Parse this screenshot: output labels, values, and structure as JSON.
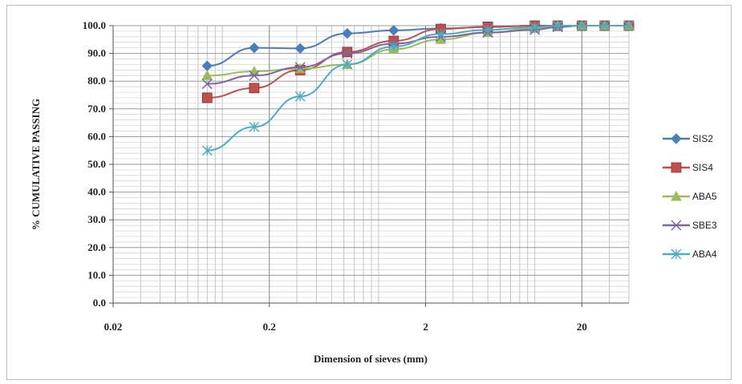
{
  "chart_data": {
    "type": "line",
    "title": "",
    "xlabel": "Dimension of sieves (mm)",
    "ylabel": "% CUMULATIVE PASSING",
    "x_scale": "log",
    "xlim": [
      0.02,
      40
    ],
    "ylim": [
      0,
      100
    ],
    "x_tick_labels": [
      "0.02",
      "0.2",
      "2",
      "20"
    ],
    "x_tick_values": [
      0.02,
      0.2,
      2,
      20
    ],
    "y_tick_labels": [
      "0.0",
      "10.0",
      "20.0",
      "30.0",
      "40.0",
      "50.0",
      "60.0",
      "70.0",
      "80.0",
      "90.0",
      "100.0"
    ],
    "y_tick_values": [
      0,
      10,
      20,
      30,
      40,
      50,
      60,
      70,
      80,
      90,
      100
    ],
    "grid": true,
    "legend_position": "right",
    "series": [
      {
        "name": "SIS2",
        "color": "#4a7ebb",
        "marker": "diamond",
        "x": [
          0.08,
          0.16,
          0.315,
          0.63,
          1.25,
          2.5,
          5,
          10,
          14,
          20,
          28,
          40
        ],
        "y": [
          85.5,
          92.0,
          91.8,
          97.2,
          98.3,
          99.0,
          99.5,
          100,
          100,
          100,
          100,
          100
        ]
      },
      {
        "name": "SIS4",
        "color": "#c0504d",
        "marker": "square",
        "x": [
          0.08,
          0.16,
          0.315,
          0.63,
          1.25,
          2.5,
          5,
          10,
          14,
          20,
          28,
          40
        ],
        "y": [
          74.0,
          77.5,
          84.0,
          90.5,
          94.5,
          98.8,
          99.6,
          100,
          100,
          100,
          100,
          100
        ]
      },
      {
        "name": "ABA5",
        "color": "#9bbb59",
        "marker": "triangle",
        "x": [
          0.08,
          0.16,
          0.315,
          0.63,
          1.25,
          2.5,
          5,
          10,
          14,
          20,
          28,
          40
        ],
        "y": [
          82.0,
          83.5,
          84.5,
          86.0,
          91.5,
          95.0,
          97.5,
          99.0,
          100,
          100,
          100,
          100
        ]
      },
      {
        "name": "SBE3",
        "color": "#8064a2",
        "marker": "x",
        "x": [
          0.08,
          0.16,
          0.315,
          0.63,
          1.25,
          2.5,
          5,
          10,
          14,
          20,
          28,
          40
        ],
        "y": [
          79.0,
          82.0,
          85.0,
          90.0,
          93.5,
          96.0,
          97.5,
          98.5,
          99.5,
          100,
          100,
          100
        ]
      },
      {
        "name": "ABA4",
        "color": "#4bacc6",
        "marker": "star",
        "x": [
          0.08,
          0.16,
          0.315,
          0.63,
          1.25,
          2.5,
          5,
          10,
          14,
          20,
          28,
          40
        ],
        "y": [
          55.0,
          63.5,
          74.5,
          86.0,
          92.5,
          97.0,
          98.5,
          99.5,
          100,
          100,
          100,
          100
        ]
      }
    ]
  }
}
